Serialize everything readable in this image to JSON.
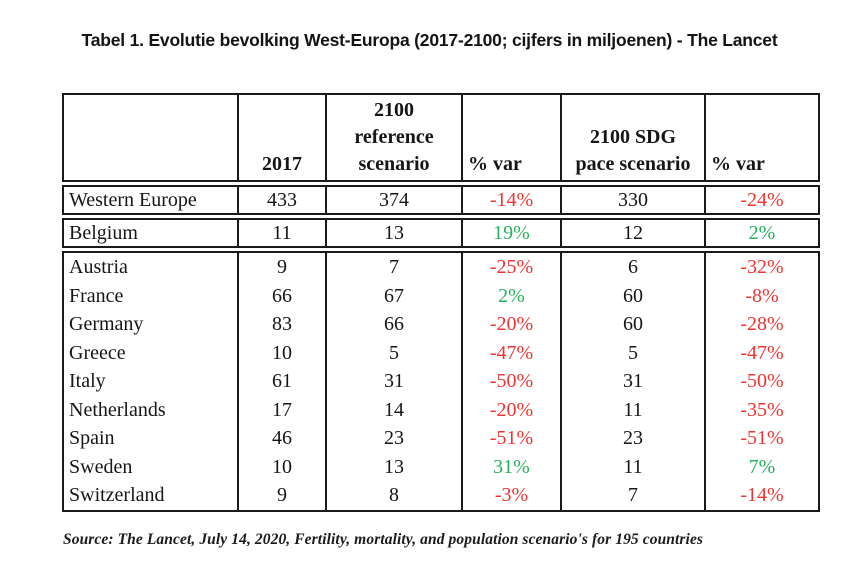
{
  "title": "Tabel 1. Evolutie bevolking West-Europa (2017-2100; cijfers in miljoenen) - The Lancet",
  "source_note": "Source: The Lancet, July 14, 2020, Fertility, mortality, and population scenario's for 195 countries",
  "colors": {
    "negative_pct": "#ef3432",
    "positive_pct": "#27b15f",
    "border": "#1a1a1a",
    "text": "#161616"
  },
  "table": {
    "header": {
      "country": "",
      "y2017": "2017",
      "ref_label": "2100 reference scenario",
      "ref_lines": [
        "2100",
        "reference",
        "scenario"
      ],
      "var1": "% var",
      "sdg_label": "2100 SDG pace scenario",
      "sdg_lines": [
        "2100 SDG",
        "pace scenario"
      ],
      "var2": "% var"
    },
    "sections": [
      {
        "name": "total",
        "rows": [
          {
            "country": "Western Europe",
            "y2017": "433",
            "ref2100": "374",
            "var_ref": "-14%",
            "sdg2100": "330",
            "var_sdg": "-24%"
          }
        ]
      },
      {
        "name": "belgium",
        "rows": [
          {
            "country": "Belgium",
            "y2017": "11",
            "ref2100": "13",
            "var_ref": "19%",
            "sdg2100": "12",
            "var_sdg": "2%"
          }
        ]
      },
      {
        "name": "countries",
        "rows": [
          {
            "country": "Austria",
            "y2017": "9",
            "ref2100": "7",
            "var_ref": "-25%",
            "sdg2100": "6",
            "var_sdg": "-32%"
          },
          {
            "country": "France",
            "y2017": "66",
            "ref2100": "67",
            "var_ref": "2%",
            "sdg2100": "60",
            "var_sdg": "-8%"
          },
          {
            "country": "Germany",
            "y2017": "83",
            "ref2100": "66",
            "var_ref": "-20%",
            "sdg2100": "60",
            "var_sdg": "-28%"
          },
          {
            "country": "Greece",
            "y2017": "10",
            "ref2100": "5",
            "var_ref": "-47%",
            "sdg2100": "5",
            "var_sdg": "-47%"
          },
          {
            "country": "Italy",
            "y2017": "61",
            "ref2100": "31",
            "var_ref": "-50%",
            "sdg2100": "31",
            "var_sdg": "-50%"
          },
          {
            "country": "Netherlands",
            "y2017": "17",
            "ref2100": "14",
            "var_ref": "-20%",
            "sdg2100": "11",
            "var_sdg": "-35%"
          },
          {
            "country": "Spain",
            "y2017": "46",
            "ref2100": "23",
            "var_ref": "-51%",
            "sdg2100": "23",
            "var_sdg": "-51%"
          },
          {
            "country": "Sweden",
            "y2017": "10",
            "ref2100": "13",
            "var_ref": "31%",
            "sdg2100": "11",
            "var_sdg": "7%"
          },
          {
            "country": "Switzerland",
            "y2017": "9",
            "ref2100": "8",
            "var_ref": "-3%",
            "sdg2100": "7",
            "var_sdg": "-14%"
          }
        ]
      }
    ]
  }
}
